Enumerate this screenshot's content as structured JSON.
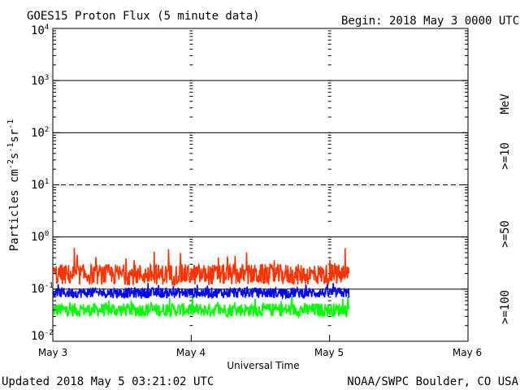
{
  "chart_data": {
    "type": "line",
    "title": "GOES15 Proton Flux (5 minute data)",
    "begin_label": "Begin: 2018 May 3 0000 UTC",
    "xlabel": "Universal Time",
    "ylabel": {
      "base": "Particles cm",
      "exp1": "-2",
      "s": "s",
      "exp2": "-1",
      "sr": "sr",
      "exp3": "-1"
    },
    "x_ticks": [
      "May 3",
      "May 4",
      "May 5",
      "May 6"
    ],
    "xlim_days": [
      0,
      3
    ],
    "y_scale": "log",
    "ylim": [
      0.01,
      10000
    ],
    "y_ticks": [
      {
        "base": "10",
        "exp": "-2"
      },
      {
        "base": "10",
        "exp": "-1"
      },
      {
        "base": "10",
        "exp": "0"
      },
      {
        "base": "10",
        "exp": "1"
      },
      {
        "base": "10",
        "exp": "2"
      },
      {
        "base": "10",
        "exp": "3"
      },
      {
        "base": "10",
        "exp": "4"
      }
    ],
    "threshold_lines": [
      {
        "value": 0.1,
        "style": "solid"
      },
      {
        "value": 1,
        "style": "solid"
      },
      {
        "value": 10,
        "style": "dashed"
      },
      {
        "value": 100,
        "style": "solid"
      },
      {
        "value": 1000,
        "style": "solid"
      }
    ],
    "data_end_day": 2.14,
    "unit_label": "MeV",
    "series": [
      {
        "name": ">=10",
        "color": "#ff3300",
        "median": 0.19,
        "min": 0.12,
        "max": 0.65
      },
      {
        "name": ">=50",
        "color": "#0000ff",
        "median": 0.085,
        "min": 0.06,
        "max": 0.14
      },
      {
        "name": ">=100",
        "color": "#00ff00",
        "median": 0.04,
        "min": 0.025,
        "max": 0.075
      }
    ]
  },
  "footer": {
    "updated": "Updated 2018 May  5 03:21:02 UTC",
    "credit": "NOAA/SWPC Boulder, CO USA"
  }
}
